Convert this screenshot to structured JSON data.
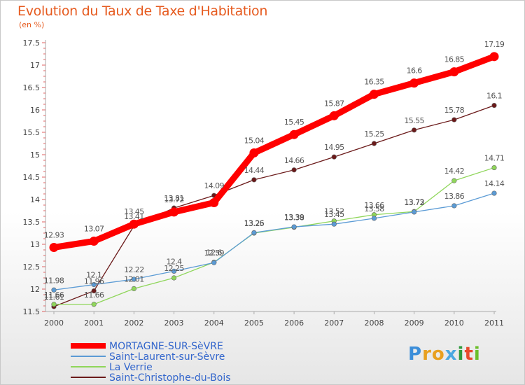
{
  "header": {
    "title": "Evolution du Taux de Taxe d'Habitation",
    "unit": "(en %)"
  },
  "logo": {
    "letters": [
      "P",
      "r",
      "o",
      "x",
      "i",
      "t",
      "i"
    ],
    "colors": [
      "#3c8ed9",
      "#e8a020",
      "#e8a020",
      "#4aa8e0",
      "#2f9a3c",
      "#e84a2c",
      "#6bbf2a"
    ]
  },
  "chart_data": {
    "type": "line",
    "title": "Evolution du Taux de Taxe d'Habitation",
    "ylabel": "(en %)",
    "xlabel": "",
    "x": [
      "2000",
      "2001",
      "2002",
      "2003",
      "2004",
      "2005",
      "2006",
      "2007",
      "2008",
      "2009",
      "2010",
      "2011"
    ],
    "ylim": [
      11.5,
      17.5
    ],
    "yticks": [
      "11.5",
      "12",
      "12.5",
      "13",
      "13.5",
      "14",
      "14.5",
      "15",
      "15.5",
      "16",
      "16.5",
      "17",
      "17.5"
    ],
    "grid": false,
    "legend_position": "bottom-left",
    "series": [
      {
        "name": "MORTAGNE-SUR-SèVRE",
        "color": "#ff0000",
        "values": [
          12.93,
          13.07,
          13.45,
          13.72,
          13.93,
          15.04,
          15.45,
          15.87,
          16.35,
          16.6,
          16.85,
          17.19
        ],
        "labels": [
          "12.93",
          "13.07",
          "13.45",
          "13.72",
          "",
          "15.04",
          "15.45",
          "15.87",
          "16.35",
          "16.6",
          "16.85",
          "17.19"
        ]
      },
      {
        "name": "Saint-Laurent-sur-Sèvre",
        "color": "#5b9bd5",
        "values": [
          11.98,
          12.1,
          12.22,
          12.4,
          12.59,
          13.26,
          13.39,
          13.45,
          13.58,
          13.72,
          13.86,
          14.14
        ],
        "labels": [
          "11.98",
          "12.1",
          "12.22",
          "12.4",
          "12.59",
          "13.26",
          "13.39",
          "13.45",
          "13.58",
          "13.72",
          "13.86",
          "14.14"
        ]
      },
      {
        "name": "La Verrie",
        "color": "#8fd65a",
        "values": [
          11.66,
          11.66,
          12.01,
          12.25,
          12.6,
          13.25,
          13.38,
          13.52,
          13.66,
          13.73,
          14.42,
          14.71
        ],
        "labels": [
          "11.66",
          "11.66",
          "12.01",
          "12.25",
          "12.6",
          "13.25",
          "13.38",
          "13.52",
          "13.66",
          "13.73",
          "14.42",
          "14.71"
        ]
      },
      {
        "name": "Saint-Christophe-du-Bois",
        "color": "#6b1a1a",
        "values": [
          11.61,
          11.96,
          13.41,
          13.81,
          14.09,
          14.44,
          14.66,
          14.95,
          15.25,
          15.55,
          15.78,
          16.1
        ],
        "labels": [
          "11.61",
          "11.96",
          "13.41",
          "13.81",
          "14.09",
          "14.44",
          "14.66",
          "14.95",
          "15.25",
          "15.55",
          "15.78",
          "16.1"
        ]
      }
    ]
  }
}
